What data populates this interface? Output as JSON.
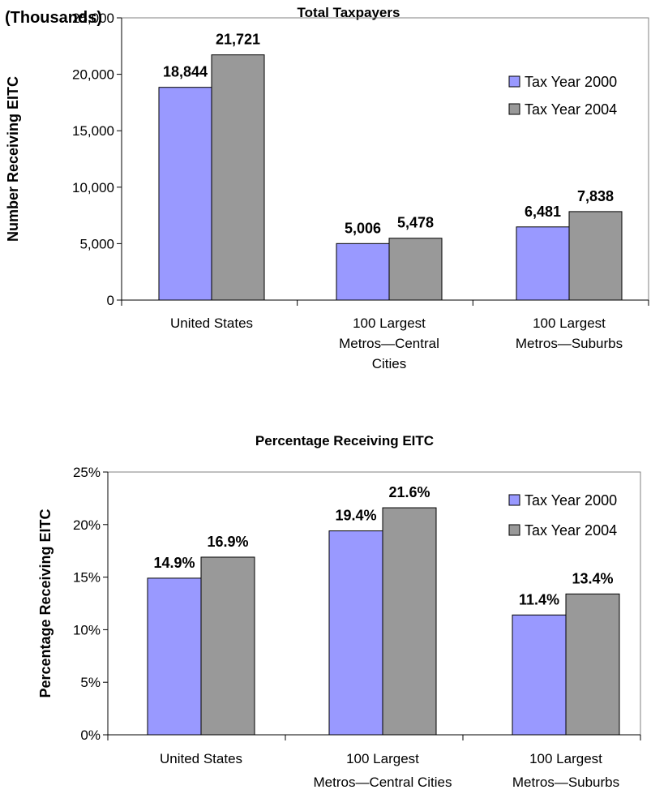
{
  "chart_data": [
    {
      "type": "bar",
      "title": "Total Taxpayers",
      "unit_label": "(Thousands)",
      "ylabel": "Number Receiving EITC",
      "xlabel": "",
      "ylim": [
        0,
        25000
      ],
      "yticks": [
        "0",
        "5,000",
        "10,000",
        "15,000",
        "20,000",
        "25,000"
      ],
      "ytick_values": [
        0,
        5000,
        10000,
        15000,
        20000,
        25000
      ],
      "categories": [
        [
          "United States"
        ],
        [
          "100 Largest",
          "Metros—Central",
          "Cities"
        ],
        [
          "100 Largest",
          "Metros—Suburbs"
        ]
      ],
      "series": [
        {
          "name": "Tax Year 2000",
          "color": "#9999ff",
          "values": [
            18844,
            5006,
            6481
          ],
          "labels": [
            "18,844",
            "5,006",
            "6,481"
          ]
        },
        {
          "name": "Tax Year 2004",
          "color": "#999999",
          "values": [
            21721,
            5478,
            7838
          ],
          "labels": [
            "21,721",
            "5,478",
            "7,838"
          ]
        }
      ],
      "legend_position": "top-right",
      "grid": false
    },
    {
      "type": "bar",
      "title": "Percentage Receiving EITC",
      "unit_label": "",
      "ylabel": "Percentage Receiving EITC",
      "xlabel": "",
      "ylim": [
        0,
        25
      ],
      "yticks": [
        "0%",
        "5%",
        "10%",
        "15%",
        "20%",
        "25%"
      ],
      "ytick_values": [
        0,
        5,
        10,
        15,
        20,
        25
      ],
      "categories": [
        [
          "United States"
        ],
        [
          "100 Largest",
          "Metros—Central Cities"
        ],
        [
          "100 Largest",
          "Metros—Suburbs"
        ]
      ],
      "series": [
        {
          "name": "Tax Year 2000",
          "color": "#9999ff",
          "values": [
            14.9,
            19.4,
            11.4
          ],
          "labels": [
            "14.9%",
            "19.4%",
            "11.4%"
          ]
        },
        {
          "name": "Tax Year 2004",
          "color": "#999999",
          "values": [
            16.9,
            21.6,
            13.4
          ],
          "labels": [
            "16.9%",
            "21.6%",
            "13.4%"
          ]
        }
      ],
      "legend_position": "top-right",
      "grid": false
    }
  ]
}
